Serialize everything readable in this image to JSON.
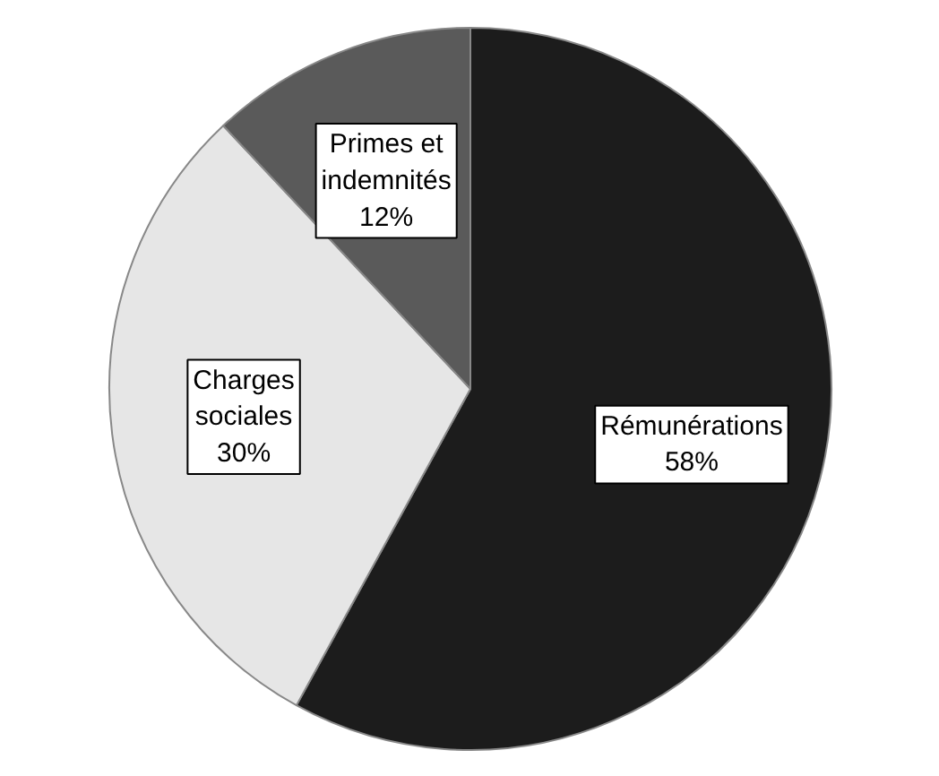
{
  "chart_data": {
    "type": "pie",
    "categories": [
      "Rémunérations",
      "Charges sociales",
      "Primes et indemnités"
    ],
    "values": [
      58,
      30,
      12
    ],
    "value_labels": [
      "58%",
      "30%",
      "12%"
    ],
    "colors": [
      "#1c1c1c",
      "#e6e6e6",
      "#5a5a5a"
    ]
  }
}
